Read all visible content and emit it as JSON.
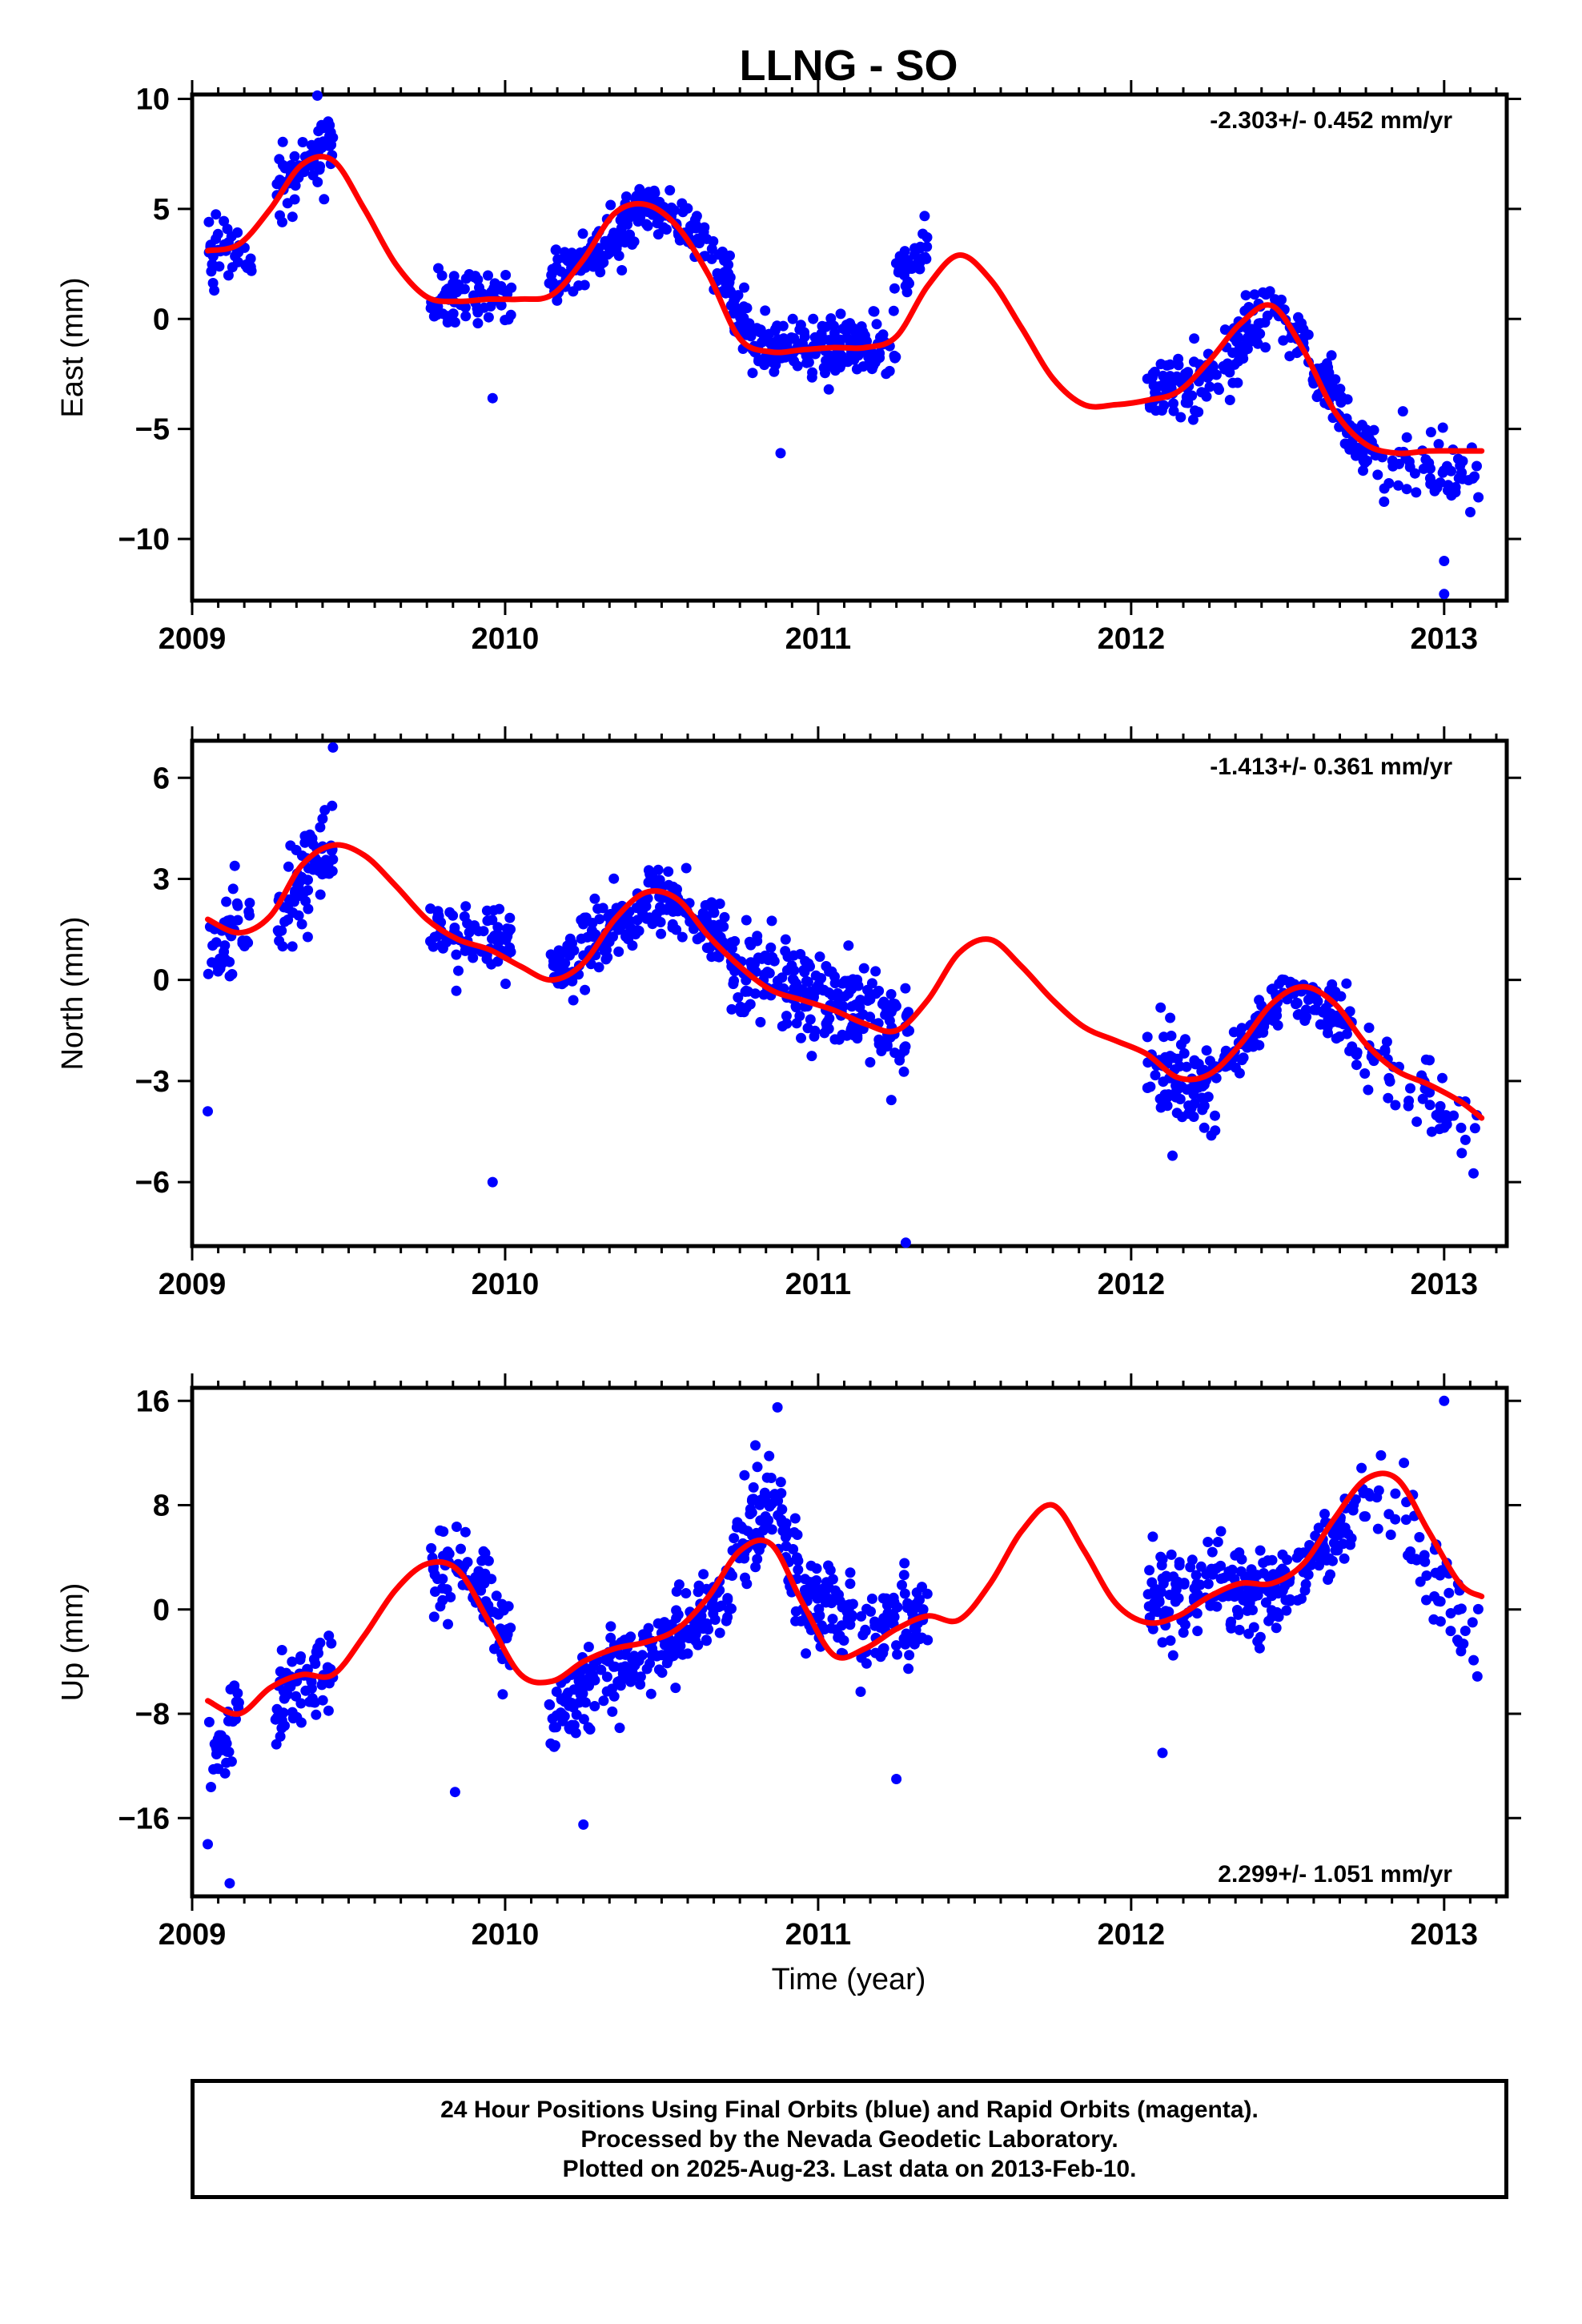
{
  "title": "LLNG - SO",
  "footer": {
    "line1": "24 Hour Positions Using Final Orbits (blue) and Rapid Orbits (magenta).",
    "line2": "Processed by the Nevada Geodetic Laboratory.",
    "line3": "Plotted on 2025-Aug-23. Last data on 2013-Feb-10."
  },
  "colors": {
    "points": "#0000ff",
    "fit": "#ff0000",
    "frame": "#000000"
  },
  "chart_data": [
    {
      "type": "scatter",
      "ylabel": "East (mm)",
      "rate_label": "-2.303+/- 0.452 mm/yr",
      "rate_position": "top-right",
      "xlim": [
        2009.0,
        2013.2
      ],
      "ylim": [
        -12.8,
        10.2
      ],
      "xticks": [
        2009,
        2010,
        2011,
        2012,
        2013
      ],
      "xtick_labels": [
        "2009",
        "2010",
        "2011",
        "2012",
        "2013"
      ],
      "yticks": [
        10,
        5,
        0,
        -5,
        -10
      ],
      "ytick_labels": [
        "10",
        "5",
        "0",
        "−5",
        "−10"
      ],
      "data_segments": [
        {
          "x0": 2009.05,
          "x1": 2009.19,
          "knots": [
            [
              2009.05,
              3.2
            ],
            [
              2009.19,
              3.4
            ]
          ],
          "noise": 1.4,
          "n": 40
        },
        {
          "x0": 2009.27,
          "x1": 2009.45,
          "knots": [
            [
              2009.27,
              5.5
            ],
            [
              2009.36,
              7.2
            ],
            [
              2009.45,
              8.0
            ]
          ],
          "noise": 1.2,
          "n": 70
        },
        {
          "x0": 2009.76,
          "x1": 2010.02,
          "knots": [
            [
              2009.76,
              1.0
            ],
            [
              2010.02,
              0.9
            ]
          ],
          "noise": 1.1,
          "n": 70
        },
        {
          "x0": 2010.14,
          "x1": 2010.72,
          "knots": [
            [
              2010.14,
              1.8
            ],
            [
              2010.3,
              3.0
            ],
            [
              2010.45,
              5.2
            ],
            [
              2010.6,
              4.2
            ],
            [
              2010.72,
              1.8
            ]
          ],
          "noise": 1.0,
          "n": 210
        },
        {
          "x0": 2010.72,
          "x1": 2011.25,
          "knots": [
            [
              2010.72,
              1.2
            ],
            [
              2010.8,
              -1.3
            ],
            [
              2011.0,
              -1.4
            ],
            [
              2011.25,
              -1.2
            ]
          ],
          "noise": 1.2,
          "n": 200
        },
        {
          "x0": 2011.24,
          "x1": 2011.35,
          "knots": [
            [
              2011.24,
              1.8
            ],
            [
              2011.35,
              3.0
            ]
          ],
          "noise": 1.2,
          "n": 40
        },
        {
          "x0": 2012.05,
          "x1": 2012.55,
          "knots": [
            [
              2012.05,
              -3.2
            ],
            [
              2012.2,
              -3.0
            ],
            [
              2012.35,
              -1.2
            ],
            [
              2012.45,
              0.6
            ],
            [
              2012.55,
              -0.8
            ]
          ],
          "noise": 1.3,
          "n": 170
        },
        {
          "x0": 2012.55,
          "x1": 2012.78,
          "knots": [
            [
              2012.55,
              -1.0
            ],
            [
              2012.7,
              -5.0
            ],
            [
              2012.78,
              -6.5
            ]
          ],
          "noise": 1.2,
          "n": 80
        },
        {
          "x0": 2012.78,
          "x1": 2013.11,
          "knots": [
            [
              2012.78,
              -6.5
            ],
            [
              2013.11,
              -7.0
            ]
          ],
          "noise": 1.5,
          "n": 60
        }
      ],
      "outliers": [
        [
          2009.96,
          -3.6
        ],
        [
          2010.88,
          -6.1
        ],
        [
          2013.0,
          -12.5
        ],
        [
          2013.0,
          -11.0
        ],
        [
          2009.4,
          10.5
        ]
      ],
      "fit": {
        "x": [
          2009.05,
          2009.15,
          2009.25,
          2009.35,
          2009.45,
          2009.55,
          2009.65,
          2009.75,
          2009.85,
          2009.95,
          2010.05,
          2010.15,
          2010.25,
          2010.35,
          2010.45,
          2010.55,
          2010.65,
          2010.75,
          2010.85,
          2010.95,
          2011.05,
          2011.15,
          2011.25,
          2011.35,
          2011.45,
          2011.55,
          2011.65,
          2011.75,
          2011.85,
          2011.95,
          2012.05,
          2012.15,
          2012.25,
          2012.35,
          2012.45,
          2012.55,
          2012.65,
          2012.75,
          2012.85,
          2012.95,
          2013.05,
          2013.12
        ],
        "y": [
          3.1,
          3.4,
          5.0,
          7.0,
          7.2,
          5.0,
          2.5,
          1.0,
          0.8,
          0.9,
          0.9,
          1.1,
          2.7,
          4.8,
          5.2,
          4.2,
          2.0,
          -0.9,
          -1.5,
          -1.4,
          -1.3,
          -1.3,
          -0.8,
          1.5,
          2.9,
          1.8,
          -0.4,
          -2.7,
          -3.9,
          -3.9,
          -3.7,
          -3.3,
          -1.9,
          -0.2,
          0.6,
          -1.4,
          -4.2,
          -5.7,
          -6.1,
          -6.0,
          -6.0,
          -6.0
        ]
      }
    },
    {
      "type": "scatter",
      "ylabel": "North (mm)",
      "rate_label": "-1.413+/- 0.361 mm/yr",
      "rate_position": "top-right",
      "xlim": [
        2009.0,
        2013.2
      ],
      "ylim": [
        -7.9,
        7.1
      ],
      "xticks": [
        2009,
        2010,
        2011,
        2012,
        2013
      ],
      "xtick_labels": [
        "2009",
        "2010",
        "2011",
        "2012",
        "2013"
      ],
      "yticks": [
        6,
        3,
        0,
        -3,
        -6
      ],
      "ytick_labels": [
        "6",
        "3",
        "0",
        "−3",
        "−6"
      ],
      "data_segments": [
        {
          "x0": 2009.05,
          "x1": 2009.19,
          "knots": [
            [
              2009.05,
              0.5
            ],
            [
              2009.19,
              2.0
            ]
          ],
          "noise": 1.4,
          "n": 40
        },
        {
          "x0": 2009.27,
          "x1": 2009.45,
          "knots": [
            [
              2009.27,
              2.0
            ],
            [
              2009.36,
              3.2
            ],
            [
              2009.45,
              3.8
            ]
          ],
          "noise": 1.2,
          "n": 70
        },
        {
          "x0": 2009.76,
          "x1": 2010.02,
          "knots": [
            [
              2009.76,
              1.5
            ],
            [
              2010.02,
              1.0
            ]
          ],
          "noise": 1.1,
          "n": 70
        },
        {
          "x0": 2010.14,
          "x1": 2010.72,
          "knots": [
            [
              2010.14,
              0.2
            ],
            [
              2010.3,
              1.2
            ],
            [
              2010.5,
              2.6
            ],
            [
              2010.72,
              1.2
            ]
          ],
          "noise": 1.0,
          "n": 210
        },
        {
          "x0": 2010.72,
          "x1": 2011.3,
          "knots": [
            [
              2010.72,
              0.5
            ],
            [
              2011.0,
              -0.6
            ],
            [
              2011.3,
              -1.5
            ]
          ],
          "noise": 1.3,
          "n": 220
        },
        {
          "x0": 2012.05,
          "x1": 2012.3,
          "knots": [
            [
              2012.05,
              -2.3
            ],
            [
              2012.2,
              -3.5
            ],
            [
              2012.3,
              -3.0
            ]
          ],
          "noise": 1.3,
          "n": 90
        },
        {
          "x0": 2012.3,
          "x1": 2012.7,
          "knots": [
            [
              2012.3,
              -2.4
            ],
            [
              2012.5,
              -0.4
            ],
            [
              2012.7,
              -1.2
            ]
          ],
          "noise": 0.7,
          "n": 130
        },
        {
          "x0": 2012.7,
          "x1": 2013.11,
          "knots": [
            [
              2012.7,
              -2.0
            ],
            [
              2012.9,
              -3.0
            ],
            [
              2013.11,
              -4.6
            ]
          ],
          "noise": 1.1,
          "n": 60
        }
      ],
      "outliers": [
        [
          2009.96,
          -6.0
        ],
        [
          2011.28,
          -7.8
        ],
        [
          2009.45,
          6.9
        ],
        [
          2009.05,
          -3.9
        ]
      ],
      "fit": {
        "x": [
          2009.05,
          2009.15,
          2009.25,
          2009.35,
          2009.45,
          2009.55,
          2009.65,
          2009.75,
          2009.85,
          2009.95,
          2010.05,
          2010.15,
          2010.25,
          2010.35,
          2010.45,
          2010.55,
          2010.65,
          2010.75,
          2010.85,
          2010.95,
          2011.05,
          2011.15,
          2011.25,
          2011.35,
          2011.45,
          2011.55,
          2011.65,
          2011.75,
          2011.85,
          2011.95,
          2012.05,
          2012.15,
          2012.25,
          2012.35,
          2012.45,
          2012.55,
          2012.65,
          2012.75,
          2012.85,
          2012.95,
          2013.05,
          2013.12
        ],
        "y": [
          1.8,
          1.4,
          1.9,
          3.4,
          4.0,
          3.7,
          2.8,
          1.8,
          1.2,
          0.9,
          0.4,
          0.0,
          0.5,
          1.8,
          2.6,
          2.4,
          1.3,
          0.4,
          -0.3,
          -0.6,
          -0.9,
          -1.3,
          -1.5,
          -0.6,
          0.8,
          1.2,
          0.4,
          -0.6,
          -1.4,
          -1.8,
          -2.2,
          -2.9,
          -2.8,
          -1.9,
          -0.7,
          -0.2,
          -0.7,
          -1.9,
          -2.7,
          -3.1,
          -3.6,
          -4.1
        ]
      }
    },
    {
      "type": "scatter",
      "ylabel": "Up (mm)",
      "rate_label": "2.299+/- 1.051 mm/yr",
      "rate_position": "bottom-right",
      "xlim": [
        2009.0,
        2013.2
      ],
      "ylim": [
        -22.0,
        17.0
      ],
      "xticks": [
        2009,
        2010,
        2011,
        2012,
        2013
      ],
      "xtick_labels": [
        "2009",
        "2010",
        "2011",
        "2012",
        "2013"
      ],
      "yticks": [
        16,
        8,
        0,
        -8,
        -16
      ],
      "ytick_labels": [
        "16",
        "8",
        "0",
        "−8",
        "−16"
      ],
      "data_segments": [
        {
          "x0": 2009.05,
          "x1": 2009.15,
          "knots": [
            [
              2009.05,
              -11.0
            ],
            [
              2009.15,
              -8.0
            ]
          ],
          "noise": 3.5,
          "n": 35
        },
        {
          "x0": 2009.26,
          "x1": 2009.45,
          "knots": [
            [
              2009.26,
              -7.5
            ],
            [
              2009.36,
              -5.0
            ],
            [
              2009.45,
              -5.5
            ]
          ],
          "noise": 2.8,
          "n": 70
        },
        {
          "x0": 2009.76,
          "x1": 2010.02,
          "knots": [
            [
              2009.76,
              3.0
            ],
            [
              2009.88,
              3.0
            ],
            [
              2010.02,
              -2.0
            ]
          ],
          "noise": 3.5,
          "n": 80
        },
        {
          "x0": 2010.14,
          "x1": 2010.72,
          "knots": [
            [
              2010.14,
              -8.5
            ],
            [
              2010.3,
              -5.0
            ],
            [
              2010.5,
              -3.0
            ],
            [
              2010.72,
              1.5
            ]
          ],
          "noise": 2.6,
          "n": 220
        },
        {
          "x0": 2010.72,
          "x1": 2011.35,
          "knots": [
            [
              2010.72,
              5.0
            ],
            [
              2010.85,
              8.0
            ],
            [
              2011.0,
              0.0
            ],
            [
              2011.15,
              -2.0
            ],
            [
              2011.35,
              0.0
            ]
          ],
          "noise": 3.5,
          "n": 230
        },
        {
          "x0": 2012.05,
          "x1": 2012.45,
          "knots": [
            [
              2012.05,
              1.5
            ],
            [
              2012.25,
              1.5
            ],
            [
              2012.45,
              1.5
            ]
          ],
          "noise": 3.2,
          "n": 150
        },
        {
          "x0": 2012.45,
          "x1": 2012.72,
          "knots": [
            [
              2012.45,
              1.0
            ],
            [
              2012.6,
              4.0
            ],
            [
              2012.72,
              7.0
            ]
          ],
          "noise": 2.5,
          "n": 90
        },
        {
          "x0": 2012.72,
          "x1": 2013.11,
          "knots": [
            [
              2012.72,
              9.0
            ],
            [
              2012.85,
              8.0
            ],
            [
              2013.0,
              0.0
            ],
            [
              2013.11,
              -4.0
            ]
          ],
          "noise": 3.5,
          "n": 60
        }
      ],
      "outliers": [
        [
          2009.12,
          -21.0
        ],
        [
          2009.05,
          -18.0
        ],
        [
          2009.84,
          -14.0
        ],
        [
          2010.25,
          -16.5
        ],
        [
          2010.87,
          15.5
        ],
        [
          2013.0,
          16.0
        ],
        [
          2012.1,
          -11.0
        ],
        [
          2011.25,
          -13.0
        ]
      ],
      "fit": {
        "x": [
          2009.05,
          2009.15,
          2009.25,
          2009.35,
          2009.45,
          2009.55,
          2009.65,
          2009.75,
          2009.85,
          2009.95,
          2010.05,
          2010.15,
          2010.25,
          2010.35,
          2010.45,
          2010.55,
          2010.65,
          2010.75,
          2010.85,
          2010.95,
          2011.05,
          2011.15,
          2011.25,
          2011.35,
          2011.45,
          2011.55,
          2011.65,
          2011.75,
          2011.85,
          2011.95,
          2012.05,
          2012.15,
          2012.25,
          2012.35,
          2012.45,
          2012.55,
          2012.65,
          2012.75,
          2012.85,
          2012.95,
          2013.05,
          2013.12
        ],
        "y": [
          -7.0,
          -8.0,
          -6.0,
          -5.0,
          -5.0,
          -2.0,
          1.5,
          3.5,
          3.0,
          -1.0,
          -5.0,
          -5.5,
          -4.0,
          -3.0,
          -2.5,
          -1.5,
          1.0,
          4.5,
          5.0,
          0.5,
          -3.5,
          -3.0,
          -1.5,
          -0.5,
          -0.8,
          2.0,
          6.0,
          8.0,
          4.5,
          0.5,
          -1.0,
          -0.5,
          1.0,
          2.0,
          2.0,
          3.5,
          7.0,
          10.0,
          10.0,
          6.0,
          2.0,
          1.0
        ]
      }
    }
  ]
}
